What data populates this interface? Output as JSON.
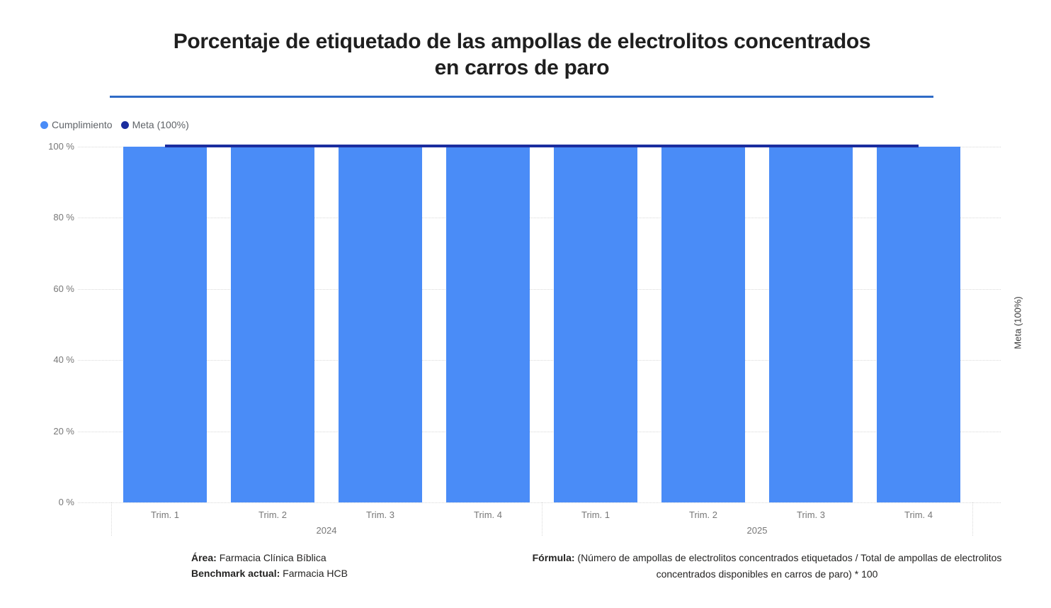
{
  "header": {
    "title_line1": "Porcentaje de etiquetado de las ampollas de electrolitos concentrados",
    "title_line2": "en carros de paro"
  },
  "chart_data": {
    "type": "bar",
    "title": "Porcentaje de etiquetado de las ampollas de electrolitos concentrados en carros de paro",
    "categories": [
      "Trim. 1",
      "Trim. 2",
      "Trim. 3",
      "Trim. 4",
      "Trim. 1",
      "Trim. 2",
      "Trim. 3",
      "Trim. 4"
    ],
    "year_groups": [
      {
        "label": "2024",
        "from": 0,
        "to": 3
      },
      {
        "label": "2025",
        "from": 4,
        "to": 7
      }
    ],
    "series": [
      {
        "name": "Cumplimiento",
        "type": "bar",
        "color": "#4A8CF7",
        "values": [
          100,
          100,
          100,
          100,
          100,
          100,
          100,
          100
        ]
      },
      {
        "name": "Meta (100%)",
        "type": "line",
        "color": "#1B2D9E",
        "values": [
          100,
          100,
          100,
          100,
          100,
          100,
          100,
          100
        ]
      }
    ],
    "y_ticks": [
      0,
      20,
      40,
      60,
      80,
      100
    ],
    "y_tick_labels": [
      "0 %",
      "20 %",
      "40 %",
      "60 %",
      "80 %",
      "100 %"
    ],
    "ylim": [
      0,
      100
    ],
    "grid": true,
    "legend_position": "top-left",
    "secondary_y_axis_title": "Meta (100%)",
    "accent_colors": {
      "bar": "#4A8CF7",
      "target_line": "#1B2D9E",
      "title_rule": "#2F6BC6"
    }
  },
  "footer": {
    "area_label": "Área:",
    "area_value": "Farmacia Clínica Bíblica",
    "benchmark_label": "Benchmark actual:",
    "benchmark_value": "Farmacia HCB",
    "formula_label": "Fórmula:",
    "formula_value": "(Número de ampollas de electrolitos concentrados etiquetados / Total de ampollas de electrolitos concentrados disponibles en carros de paro) * 100"
  }
}
